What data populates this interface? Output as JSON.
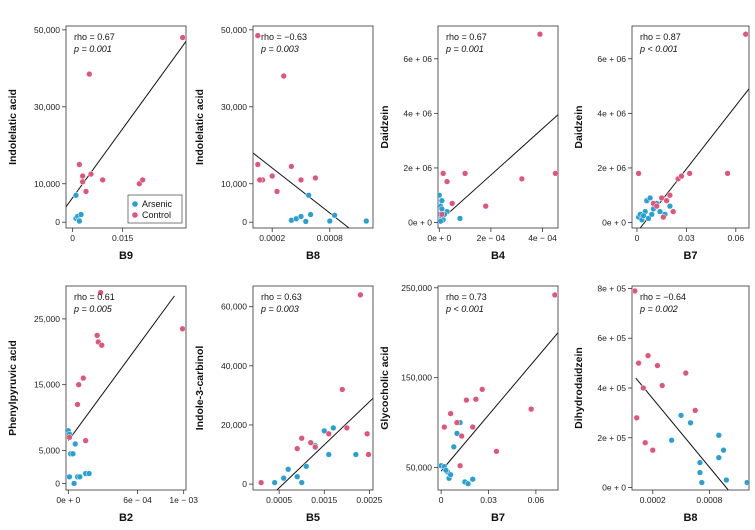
{
  "colors": {
    "arsenic": "#2aa0d2",
    "control": "#e0557a",
    "line": "#111111",
    "frame": "#333333"
  },
  "legend": {
    "arsenic": "Arsenic",
    "control": "Control"
  },
  "chart_data": [
    {
      "type": "scatter",
      "xlabel": "B9",
      "ylabel": "Indolelatic acid",
      "rho": "rho = 0.67",
      "p": "p = 0.001",
      "xlim": [
        -0.002,
        0.034
      ],
      "ylim": [
        -1500,
        51000
      ],
      "xticks": [
        0,
        0.015
      ],
      "xticklabels": [
        "0",
        "0.015"
      ],
      "yticks": [
        0,
        10000,
        30000,
        50000
      ],
      "yticklabels": [
        "0",
        "10,000",
        "30,000",
        "50,000"
      ],
      "fit": [
        [
          -0.002,
          4000
        ],
        [
          0.034,
          47000
        ]
      ],
      "legend": true,
      "series": [
        {
          "name": "Arsenic",
          "points": [
            [
              0.001,
              1000
            ],
            [
              0.0015,
              1500
            ],
            [
              0.002,
              500
            ],
            [
              0.0025,
              2000
            ],
            [
              0.001,
              7000
            ],
            [
              0.002,
              300
            ]
          ]
        },
        {
          "name": "Control",
          "points": [
            [
              0.002,
              15000
            ],
            [
              0.003,
              12000
            ],
            [
              0.004,
              8000
            ],
            [
              0.005,
              38500
            ],
            [
              0.0055,
              12500
            ],
            [
              0.003,
              10500
            ],
            [
              0.009,
              11000
            ],
            [
              0.02,
              10000
            ],
            [
              0.021,
              11000
            ],
            [
              0.033,
              48000
            ]
          ]
        }
      ]
    },
    {
      "type": "scatter",
      "xlabel": "B8",
      "ylabel": "Indolelatic acid",
      "rho": "rho = −0.63",
      "p": "p = 0.003",
      "xlim": [
        0,
        0.00125
      ],
      "ylim": [
        -1500,
        51000
      ],
      "xticks": [
        0.0002,
        0.0008
      ],
      "xticklabels": [
        "0.0002",
        "0.0008"
      ],
      "yticks": [
        0,
        10000,
        30000,
        50000
      ],
      "yticklabels": [
        "0",
        "10,000",
        "30,000",
        "50,000"
      ],
      "fit": [
        [
          0,
          18000
        ],
        [
          0.001,
          -1500
        ]
      ],
      "series": [
        {
          "name": "Arsenic",
          "points": [
            [
              0.0004,
              500
            ],
            [
              0.00045,
              900
            ],
            [
              0.0005,
              1500
            ],
            [
              0.00055,
              200
            ],
            [
              0.0006,
              2000
            ],
            [
              0.00058,
              7000
            ],
            [
              0.0008,
              300
            ],
            [
              0.00085,
              1800
            ],
            [
              0.00118,
              300
            ]
          ]
        },
        {
          "name": "Control",
          "points": [
            [
              5e-05,
              15000
            ],
            [
              0.0001,
              11000
            ],
            [
              0.0002,
              12000
            ],
            [
              0.00025,
              8000
            ],
            [
              0.00032,
              38000
            ],
            [
              0.0004,
              14500
            ],
            [
              0.0005,
              11000
            ],
            [
              0.00065,
              11500
            ],
            [
              7e-05,
              11000
            ],
            [
              5e-05,
              48500
            ]
          ]
        }
      ]
    },
    {
      "type": "scatter",
      "xlabel": "B4",
      "ylabel": "Daidzein",
      "rho": "rho = 0.67",
      "p": "p = 0.001",
      "xlim": [
        -5e-06,
        0.00046
      ],
      "ylim": [
        -200000,
        7200000
      ],
      "xticks": [
        0,
        0.0002,
        0.0004
      ],
      "xticklabels": [
        "0e + 0",
        "2e − 04",
        "4e − 04"
      ],
      "yticks": [
        0,
        2000000,
        4000000,
        6000000
      ],
      "yticklabels": [
        "0e + 0",
        "2e + 06",
        "4e + 06",
        "6e + 06"
      ],
      "fit": [
        [
          -5e-06,
          0
        ],
        [
          0.00046,
          3950000
        ]
      ],
      "series": [
        {
          "name": "Arsenic",
          "points": [
            [
              0,
              300000
            ],
            [
              5e-06,
              600000
            ],
            [
              1e-05,
              800000
            ],
            [
              0,
              1000000
            ],
            [
              1e-05,
              200000
            ],
            [
              1.5e-05,
              100000
            ],
            [
              3e-05,
              400000
            ],
            [
              2e-05,
              300000
            ],
            [
              8e-05,
              150000
            ],
            [
              5e-06,
              50000
            ],
            [
              1e-05,
              500000
            ]
          ]
        },
        {
          "name": "Control",
          "points": [
            [
              1.5e-05,
              1800000
            ],
            [
              3e-05,
              1500000
            ],
            [
              0.0001,
              1800000
            ],
            [
              5e-05,
              700000
            ],
            [
              0.00018,
              600000
            ],
            [
              0.00032,
              1600000
            ],
            [
              0.00039,
              6900000
            ],
            [
              0.00045,
              1800000
            ],
            [
              1e-05,
              300000
            ]
          ]
        }
      ]
    },
    {
      "type": "scatter",
      "xlabel": "B7",
      "ylabel": "Daidzein",
      "rho": "rho = 0.87",
      "p": "p < 0.001",
      "xlim": [
        -0.003,
        0.068
      ],
      "ylim": [
        -200000,
        7200000
      ],
      "xticks": [
        0,
        0.03,
        0.06
      ],
      "xticklabels": [
        "0",
        "0.03",
        "0.06"
      ],
      "yticks": [
        0,
        2000000,
        4000000,
        6000000
      ],
      "yticklabels": [
        "0e + 0",
        "2e + 06",
        "4e + 06",
        "6e + 06"
      ],
      "fit": [
        [
          0.002,
          -200000
        ],
        [
          0.068,
          4900000
        ]
      ],
      "series": [
        {
          "name": "Arsenic",
          "points": [
            [
              0.001,
              200000
            ],
            [
              0.002,
              300000
            ],
            [
              0.003,
              100000
            ],
            [
              0.005,
              400000
            ],
            [
              0.006,
              800000
            ],
            [
              0.008,
              900000
            ],
            [
              0.01,
              500000
            ],
            [
              0.012,
              700000
            ],
            [
              0.014,
              400000
            ],
            [
              0.017,
              300000
            ],
            [
              0.02,
              600000
            ],
            [
              0.004,
              250000
            ],
            [
              0.007,
              150000
            ],
            [
              0.009,
              300000
            ]
          ]
        },
        {
          "name": "Control",
          "points": [
            [
              0.001,
              1800000
            ],
            [
              0.01,
              700000
            ],
            [
              0.015,
              900000
            ],
            [
              0.02,
              1000000
            ],
            [
              0.025,
              1600000
            ],
            [
              0.027,
              1700000
            ],
            [
              0.032,
              1800000
            ],
            [
              0.055,
              1800000
            ],
            [
              0.066,
              6900000
            ],
            [
              0.012,
              600000
            ],
            [
              0.016,
              200000
            ],
            [
              0.018,
              800000
            ],
            [
              0.022,
              400000
            ]
          ]
        }
      ]
    },
    {
      "type": "scatter",
      "xlabel": "B2",
      "ylabel": "Phenylpyruvic acid",
      "rho": "rho = 0.61",
      "p": "p = 0.005",
      "xlim": [
        -2e-05,
        0.00102
      ],
      "ylim": [
        -1000,
        30000
      ],
      "xticks": [
        0,
        0.0006,
        0.001
      ],
      "xticklabels": [
        "0e + 0",
        "6e − 04",
        "1e − 03"
      ],
      "yticks": [
        0,
        5000,
        15000,
        25000
      ],
      "yticklabels": [
        "0",
        "5,000",
        "15,000",
        "25,000"
      ],
      "fit": [
        [
          0,
          6500
        ],
        [
          0.00092,
          28500
        ]
      ],
      "series": [
        {
          "name": "Arsenic",
          "points": [
            [
              0,
              8000
            ],
            [
              1e-05,
              7500
            ],
            [
              2e-05,
              4500
            ],
            [
              4e-05,
              4500
            ],
            [
              6e-05,
              6000
            ],
            [
              8e-05,
              1000
            ],
            [
              0.0001,
              1000
            ],
            [
              0.00015,
              1500
            ],
            [
              0.00018,
              1500
            ],
            [
              5e-05,
              0
            ],
            [
              1e-05,
              1000
            ]
          ]
        },
        {
          "name": "Control",
          "points": [
            [
              1e-05,
              7000
            ],
            [
              8e-05,
              12000
            ],
            [
              9e-05,
              15000
            ],
            [
              0.00013,
              16000
            ],
            [
              0.00015,
              6500
            ],
            [
              0.00025,
              22500
            ],
            [
              0.00026,
              21500
            ],
            [
              0.00029,
              21000
            ],
            [
              0.00028,
              29000
            ],
            [
              0.00099,
              23500
            ]
          ]
        }
      ]
    },
    {
      "type": "scatter",
      "xlabel": "B5",
      "ylabel": "Indole-3-carbinol",
      "rho": "rho = 0.63",
      "p": "p = 0.003",
      "xlim": [
        -8e-05,
        0.00258
      ],
      "ylim": [
        -2000,
        67000
      ],
      "xticks": [
        0.0005,
        0.0015,
        0.0025
      ],
      "xticklabels": [
        "0.0005",
        "0.0015",
        "0.0025"
      ],
      "yticks": [
        0,
        20000,
        40000,
        60000
      ],
      "yticklabels": [
        "0",
        "20,000",
        "40,000",
        "60,000"
      ],
      "fit": [
        [
          0.00045,
          -2000
        ],
        [
          0.00258,
          29000
        ]
      ],
      "series": [
        {
          "name": "Arsenic",
          "points": [
            [
              0.0004,
              500
            ],
            [
              0.0006,
              2000
            ],
            [
              0.0007,
              5000
            ],
            [
              0.0009,
              2500
            ],
            [
              0.0011,
              6000
            ],
            [
              0.001,
              500
            ],
            [
              0.0013,
              13000
            ],
            [
              0.0015,
              18000
            ],
            [
              0.0016,
              10000
            ],
            [
              0.0017,
              19000
            ],
            [
              0.0022,
              10000
            ]
          ]
        },
        {
          "name": "Control",
          "points": [
            [
              0.0001,
              500
            ],
            [
              0.0009,
              12000
            ],
            [
              0.001,
              15500
            ],
            [
              0.0012,
              14000
            ],
            [
              0.0013,
              12500
            ],
            [
              0.0016,
              17000
            ],
            [
              0.0019,
              32000
            ],
            [
              0.002,
              19000
            ],
            [
              0.0023,
              64000
            ],
            [
              0.00245,
              17000
            ],
            [
              0.00248,
              10000
            ]
          ]
        }
      ]
    },
    {
      "type": "scatter",
      "xlabel": "B7",
      "ylabel": "Glycocholic acid",
      "rho": "rho = 0.73",
      "p": "p < 0.001",
      "xlim": [
        -0.002,
        0.074
      ],
      "ylim": [
        25000,
        252000
      ],
      "xticks": [
        0,
        0.03,
        0.06
      ],
      "xticklabels": [
        "0",
        "0.03",
        "0.06"
      ],
      "yticks": [
        50000,
        150000,
        250000
      ],
      "yticklabels": [
        "50,000",
        "150,000",
        "250,000"
      ],
      "fit": [
        [
          0,
          46000
        ],
        [
          0.074,
          200000
        ]
      ],
      "series": [
        {
          "name": "Arsenic",
          "points": [
            [
              0,
              52000
            ],
            [
              0.002,
              51000
            ],
            [
              0.004,
              45000
            ],
            [
              0.005,
              38000
            ],
            [
              0.006,
              42000
            ],
            [
              0.008,
              73000
            ],
            [
              0.01,
              88000
            ],
            [
              0.012,
              100000
            ],
            [
              0.015,
              34000
            ],
            [
              0.017,
              32000
            ],
            [
              0.02,
              37000
            ],
            [
              0.003,
              47000
            ]
          ]
        },
        {
          "name": "Control",
          "points": [
            [
              0.002,
              95000
            ],
            [
              0.006,
              110000
            ],
            [
              0.01,
              100000
            ],
            [
              0.013,
              85000
            ],
            [
              0.016,
              125000
            ],
            [
              0.022,
              126000
            ],
            [
              0.026,
              137000
            ],
            [
              0.035,
              68000
            ],
            [
              0.057,
              115000
            ],
            [
              0.072,
              242000
            ],
            [
              0.02,
              95000
            ],
            [
              0.012,
              52000
            ]
          ]
        }
      ]
    },
    {
      "type": "scatter",
      "xlabel": "B8",
      "ylabel": "Dihydrodaidzein",
      "rho": "rho = −0.64",
      "p": "p = 0.002",
      "xlim": [
        -2e-05,
        0.00122
      ],
      "ylim": [
        -10000,
        810000
      ],
      "xticks": [
        0.0002,
        0.0008
      ],
      "xticklabels": [
        "0.0002",
        "0.0008"
      ],
      "yticks": [
        0,
        200000,
        400000,
        600000,
        800000
      ],
      "yticklabels": [
        "0e + 0",
        "2e + 05",
        "4e + 05",
        "6e + 05",
        "8e + 05"
      ],
      "fit": [
        [
          2e-05,
          440000
        ],
        [
          0.001,
          -10000
        ]
      ],
      "series": [
        {
          "name": "Arsenic",
          "points": [
            [
              0.0004,
              190000
            ],
            [
              0.0005,
              290000
            ],
            [
              0.0006,
              260000
            ],
            [
              0.0007,
              100000
            ],
            [
              0.0007,
              60000
            ],
            [
              0.00072,
              20000
            ],
            [
              0.0009,
              210000
            ],
            [
              0.00095,
              150000
            ],
            [
              0.00098,
              30000
            ],
            [
              0.0012,
              20000
            ],
            [
              0.0009,
              120000
            ]
          ]
        },
        {
          "name": "Control",
          "points": [
            [
              1e-05,
              790000
            ],
            [
              5e-05,
              500000
            ],
            [
              0.0001,
              400000
            ],
            [
              0.00015,
              530000
            ],
            [
              0.0002,
              150000
            ],
            [
              0.00025,
              490000
            ],
            [
              0.0003,
              410000
            ],
            [
              0.00055,
              460000
            ],
            [
              0.00065,
              310000
            ],
            [
              3e-05,
              280000
            ],
            [
              0.00012,
              180000
            ]
          ]
        }
      ]
    }
  ]
}
